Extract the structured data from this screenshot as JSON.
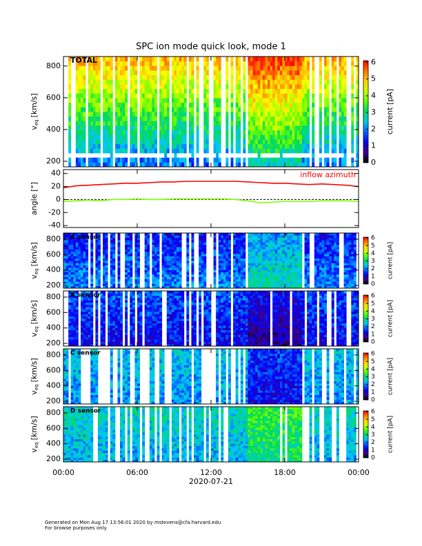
{
  "title": "SPC ion mode quick look, mode 1",
  "footer": [
    "Generated on Mon Aug 17 13:56:01 2020 by mstevens@cfa.harvard.edu",
    "For browse purposes only."
  ],
  "chart_data": [
    {
      "type": "heatmap",
      "label": "TOTAL",
      "ylabel": "v",
      "ylabel_subscript": "eq",
      "ylabel_units": "[km/s]",
      "xlim": [
        0,
        24
      ],
      "xticks": [
        0,
        6,
        12,
        18,
        24
      ],
      "ylim": [
        165,
        860
      ],
      "yticks": [
        200,
        400,
        600,
        800
      ],
      "colorbar": {
        "label": "current [pA]",
        "lim": [
          0,
          6.1
        ],
        "ticks": [
          0,
          1,
          2,
          3,
          4,
          5,
          6
        ]
      }
    },
    {
      "type": "line",
      "ylabel": "angle [°]",
      "xlim": [
        0,
        24
      ],
      "xticks": [
        0,
        6,
        12,
        18,
        24
      ],
      "ylim": [
        -43,
        46
      ],
      "yticks": [
        -40,
        -20,
        0,
        20,
        40
      ],
      "reference_line": 0,
      "x": [
        0,
        1,
        2,
        3,
        4,
        5,
        6,
        7,
        8,
        9,
        10,
        11,
        12,
        13,
        14,
        15,
        16,
        17,
        18,
        19,
        20,
        21,
        22,
        23,
        24
      ],
      "series": [
        {
          "name": "inflow azimuth",
          "color": "#ff0000",
          "values": [
            18,
            21,
            22,
            23,
            24,
            25,
            25,
            26,
            27,
            27,
            28,
            28,
            28,
            28,
            28,
            27,
            26,
            25,
            25,
            24,
            23,
            24,
            23,
            22,
            20
          ]
        },
        {
          "color": "#80ff00",
          "values": [
            -3,
            -2,
            -1,
            -2,
            0,
            0,
            1,
            0,
            0,
            1,
            1,
            1,
            1,
            1,
            0,
            -2,
            -5,
            -4,
            -3,
            -3,
            -3,
            -2,
            -2,
            -2,
            -3
          ]
        }
      ]
    },
    {
      "type": "heatmap",
      "label": "A sensor",
      "ylabel": "v",
      "ylabel_subscript": "eq",
      "ylabel_units": "[km/s]",
      "xlim": [
        0,
        24
      ],
      "xticks": [
        0,
        6,
        12,
        18,
        24
      ],
      "ylim": [
        165,
        880
      ],
      "yticks": [
        200,
        400,
        600,
        800
      ],
      "colorbar": {
        "label": "current [pA]",
        "lim": [
          0,
          6.1
        ],
        "ticks": [
          0,
          1,
          2,
          3,
          4,
          5,
          6
        ]
      }
    },
    {
      "type": "heatmap",
      "label": "B sensor",
      "ylabel": "v",
      "ylabel_subscript": "eq",
      "ylabel_units": "[km/s]",
      "xlim": [
        0,
        24
      ],
      "xticks": [
        0,
        6,
        12,
        18,
        24
      ],
      "ylim": [
        165,
        880
      ],
      "yticks": [
        200,
        400,
        600,
        800
      ],
      "colorbar": {
        "label": "current [pA]",
        "lim": [
          0,
          6.1
        ],
        "ticks": [
          0,
          1,
          2,
          3,
          4,
          5,
          6
        ]
      }
    },
    {
      "type": "heatmap",
      "label": "C sensor",
      "ylabel": "v",
      "ylabel_subscript": "eq",
      "ylabel_units": "[km/s]",
      "xlim": [
        0,
        24
      ],
      "xticks": [
        0,
        6,
        12,
        18,
        24
      ],
      "ylim": [
        165,
        880
      ],
      "yticks": [
        200,
        400,
        600,
        800
      ],
      "colorbar": {
        "label": "current [pA]",
        "lim": [
          0,
          6.1
        ],
        "ticks": [
          0,
          1,
          2,
          3,
          4,
          5,
          6
        ]
      }
    },
    {
      "type": "heatmap",
      "label": "D sensor",
      "ylabel": "v",
      "ylabel_subscript": "eq",
      "ylabel_units": "[km/s]",
      "xlim": [
        0,
        24
      ],
      "ylim": [
        165,
        880
      ],
      "yticks": [
        200,
        400,
        600,
        800
      ],
      "xticks": [
        {
          "value": 0,
          "label": "00:00"
        },
        {
          "value": 6,
          "label": "06:00"
        },
        {
          "value": 12,
          "label": "12:00"
        },
        {
          "value": 18,
          "label": "18:00"
        },
        {
          "value": 24,
          "label": "00:00"
        }
      ],
      "xlabel": "2020-07-21",
      "colorbar": {
        "label": "current [pA]",
        "lim": [
          0,
          6.1
        ],
        "ticks": [
          0,
          1,
          2,
          3,
          4,
          5,
          6
        ]
      }
    }
  ]
}
